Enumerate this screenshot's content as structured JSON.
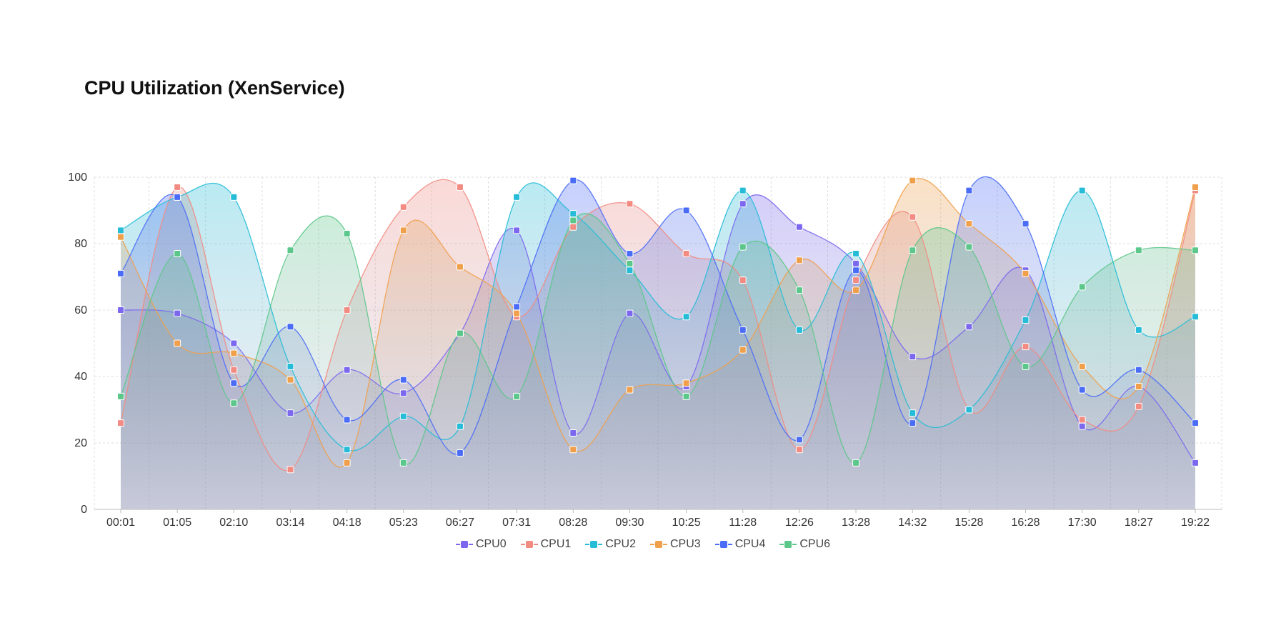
{
  "chart_data": {
    "type": "area",
    "title": "CPU Utilization (XenService)",
    "xlabel": "",
    "ylabel": "",
    "ylim": [
      0,
      100
    ],
    "yticks": [
      "0",
      "20",
      "40",
      "60",
      "80",
      "100"
    ],
    "categories": [
      "00:01",
      "01:05",
      "02:10",
      "03:14",
      "04:18",
      "05:23",
      "06:27",
      "07:31",
      "08:28",
      "09:30",
      "10:25",
      "11:28",
      "12:26",
      "13:28",
      "14:32",
      "15:28",
      "16:28",
      "17:30",
      "18:27",
      "19:22"
    ],
    "grid": true,
    "legend_position": "bottom-center",
    "series": [
      {
        "name": "CPU0",
        "color": "#7b68ee",
        "values": [
          60,
          59,
          50,
          29,
          42,
          35,
          53,
          84,
          23,
          59,
          37,
          92,
          85,
          74,
          46,
          55,
          72,
          25,
          37,
          14
        ]
      },
      {
        "name": "CPU1",
        "color": "#f28b82",
        "values": [
          26,
          97,
          42,
          12,
          60,
          91,
          97,
          58,
          85,
          92,
          77,
          69,
          18,
          69,
          88,
          30,
          49,
          27,
          31,
          96
        ]
      },
      {
        "name": "CPU2",
        "color": "#26bcd7",
        "values": [
          84,
          94,
          94,
          43,
          18,
          28,
          25,
          94,
          89,
          72,
          58,
          96,
          54,
          77,
          29,
          30,
          57,
          96,
          54,
          58
        ]
      },
      {
        "name": "CPU3",
        "color": "#f0a04b",
        "values": [
          82,
          50,
          47,
          39,
          14,
          84,
          73,
          59,
          18,
          36,
          38,
          48,
          75,
          66,
          99,
          86,
          71,
          43,
          37,
          97
        ]
      },
      {
        "name": "CPU4",
        "color": "#4a6cf7",
        "values": [
          71,
          94,
          38,
          55,
          27,
          39,
          17,
          61,
          99,
          77,
          90,
          54,
          21,
          72,
          26,
          96,
          86,
          36,
          42,
          26
        ]
      },
      {
        "name": "CPU6",
        "color": "#5cc78a",
        "values": [
          34,
          77,
          32,
          78,
          83,
          14,
          53,
          34,
          87,
          74,
          34,
          79,
          66,
          14,
          78,
          79,
          43,
          67,
          78,
          78
        ]
      }
    ]
  }
}
